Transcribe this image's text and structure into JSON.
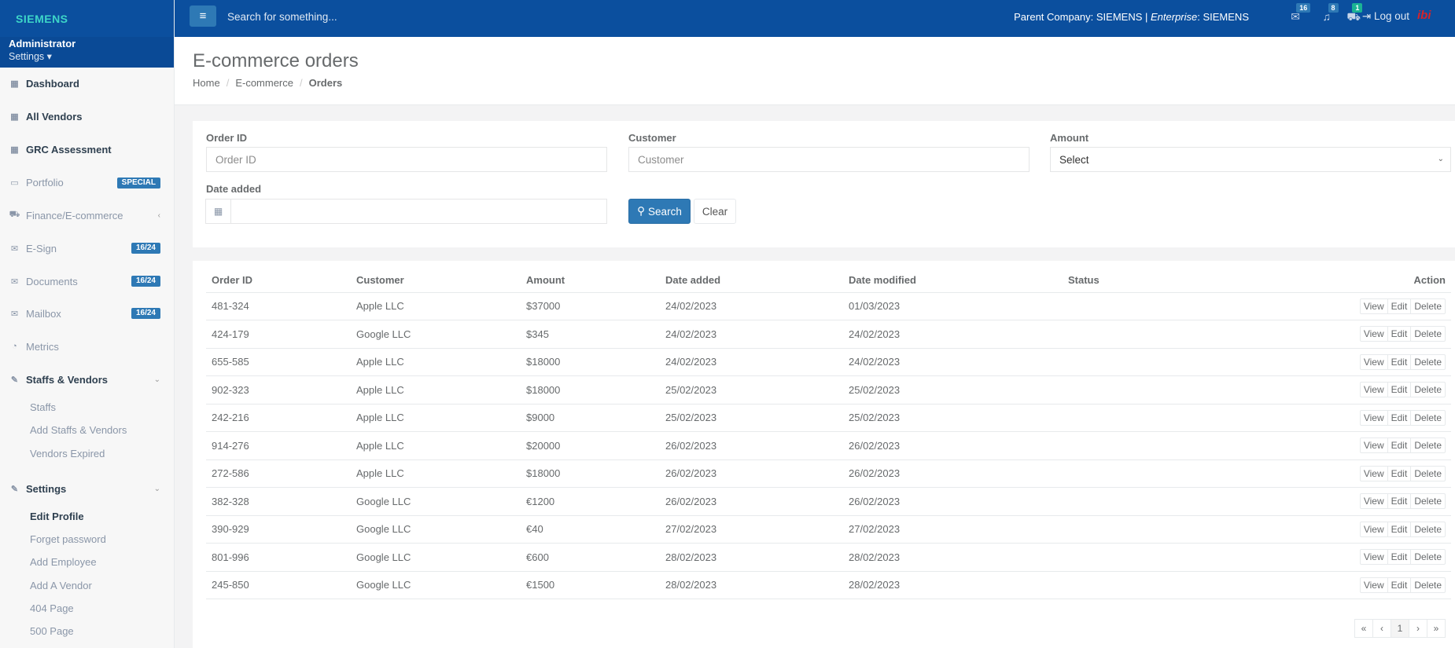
{
  "brand": "SIEMENS",
  "user": {
    "name": "Administrator",
    "role_menu": "Settings"
  },
  "sidebar": {
    "items": [
      {
        "label": "Dashboard",
        "icon": "grid-icon"
      },
      {
        "label": "All Vendors",
        "icon": "grid-icon"
      },
      {
        "label": "GRC Assessment",
        "icon": "grid-icon"
      },
      {
        "label": "Portfolio",
        "icon": "desktop-icon",
        "badge": "SPECIAL"
      },
      {
        "label": "Finance/E-commerce",
        "icon": "cart-icon"
      },
      {
        "label": "E-Sign",
        "icon": "envelope-icon",
        "badge": "16/24"
      },
      {
        "label": "Documents",
        "icon": "envelope-icon",
        "badge": "16/24"
      },
      {
        "label": "Mailbox",
        "icon": "envelope-icon",
        "badge": "16/24"
      },
      {
        "label": "Metrics",
        "icon": "pie-chart-icon"
      },
      {
        "label": "Staffs & Vendors",
        "icon": "edit-icon"
      },
      {
        "label": "Settings",
        "icon": "edit-icon"
      }
    ],
    "staffs_sub": [
      "Staffs",
      "Add Staffs & Vendors",
      "Vendors Expired"
    ],
    "settings_sub": [
      "Edit Profile",
      "Forget password",
      "Add Employee",
      "Add A Vendor",
      "404 Page",
      "500 Page"
    ]
  },
  "topbar": {
    "search_placeholder": "Search for something...",
    "company_prefix": "Parent Company: SIEMENS | ",
    "enterprise_label": "Enterprise",
    "enterprise_value": ": SIEMENS",
    "messages_count": "16",
    "alerts_count": "8",
    "cart_count": "1",
    "logout": "Log out",
    "logo_text": "ibi"
  },
  "page": {
    "title": "E-commerce orders",
    "breadcrumb": [
      "Home",
      "E-commerce",
      "Orders"
    ]
  },
  "filters": {
    "order_id_label": "Order ID",
    "order_id_placeholder": "Order ID",
    "customer_label": "Customer",
    "customer_placeholder": "Customer",
    "amount_label": "Amount",
    "amount_value": "Select",
    "date_label": "Date added",
    "search_label": "Search",
    "clear_label": "Clear"
  },
  "table": {
    "headers": [
      "Order ID",
      "Customer",
      "Amount",
      "Date added",
      "Date modified",
      "Status",
      "Action"
    ],
    "actions": [
      "View",
      "Edit",
      "Delete"
    ],
    "rows": [
      [
        "481-324",
        "Apple LLC",
        "$37000",
        "24/02/2023",
        "01/03/2023",
        ""
      ],
      [
        "424-179",
        "Google LLC",
        "$345",
        "24/02/2023",
        "24/02/2023",
        ""
      ],
      [
        "655-585",
        "Apple LLC",
        "$18000",
        "24/02/2023",
        "24/02/2023",
        ""
      ],
      [
        "902-323",
        "Apple LLC",
        "$18000",
        "25/02/2023",
        "25/02/2023",
        ""
      ],
      [
        "242-216",
        "Apple LLC",
        "$9000",
        "25/02/2023",
        "25/02/2023",
        ""
      ],
      [
        "914-276",
        "Apple LLC",
        "$20000",
        "26/02/2023",
        "26/02/2023",
        ""
      ],
      [
        "272-586",
        "Apple LLC",
        "$18000",
        "26/02/2023",
        "26/02/2023",
        ""
      ],
      [
        "382-328",
        "Google LLC",
        "€1200",
        "26/02/2023",
        "26/02/2023",
        ""
      ],
      [
        "390-929",
        "Google LLC",
        "€40",
        "27/02/2023",
        "27/02/2023",
        ""
      ],
      [
        "801-996",
        "Google LLC",
        "€600",
        "28/02/2023",
        "28/02/2023",
        ""
      ],
      [
        "245-850",
        "Google LLC",
        "€1500",
        "28/02/2023",
        "28/02/2023",
        ""
      ]
    ]
  },
  "pagination": {
    "first": "«",
    "prev": "‹",
    "current": "1",
    "next": "›",
    "last": "»"
  }
}
